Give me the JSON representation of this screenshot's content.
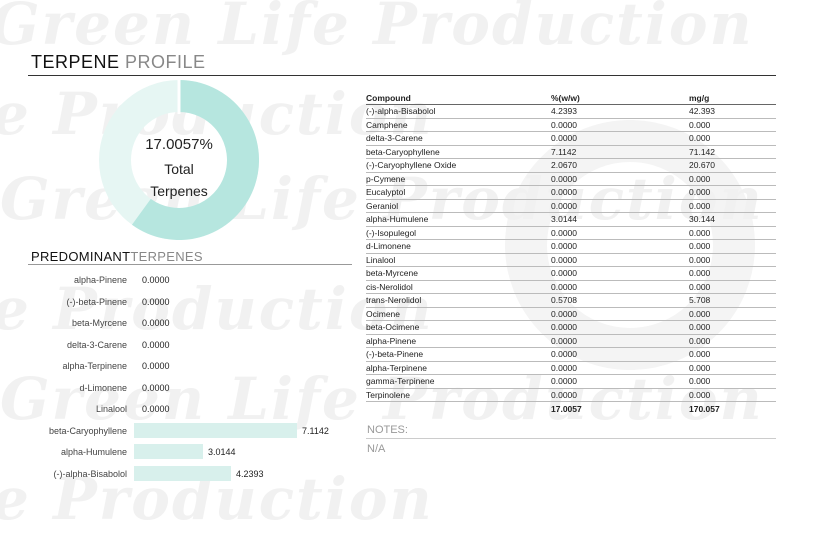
{
  "watermark": {
    "text": "Green Life Production"
  },
  "header": {
    "title_bold": "TERPENE",
    "title_light": "PROFILE"
  },
  "total": {
    "value": "17.0057%",
    "label_line1": "Total",
    "label_line2": "Terpenes",
    "fraction": 0.170057
  },
  "colors": {
    "donut_fill": "#b6e6df",
    "donut_rest": "#e6f6f3",
    "bar": "#d8f0ec"
  },
  "predominant": {
    "title_bold": "PREDOMINANT",
    "title_light": "TERPENES",
    "items": [
      {
        "name": "alpha-Pinene",
        "value": "0.0000",
        "amount": 0.0
      },
      {
        "name": "(-)-beta-Pinene",
        "value": "0.0000",
        "amount": 0.0
      },
      {
        "name": "beta-Myrcene",
        "value": "0.0000",
        "amount": 0.0
      },
      {
        "name": "delta-3-Carene",
        "value": "0.0000",
        "amount": 0.0
      },
      {
        "name": "alpha-Terpinene",
        "value": "0.0000",
        "amount": 0.0
      },
      {
        "name": "d-Limonene",
        "value": "0.0000",
        "amount": 0.0
      },
      {
        "name": "Linalool",
        "value": "0.0000",
        "amount": 0.0
      },
      {
        "name": "beta-Caryophyllene",
        "value": "7.1142",
        "amount": 7.1142
      },
      {
        "name": "alpha-Humulene",
        "value": "3.0144",
        "amount": 3.0144
      },
      {
        "name": "(-)-alpha-Bisabolol",
        "value": "4.2393",
        "amount": 4.2393
      }
    ]
  },
  "table": {
    "headers": [
      "Compound",
      "%(w/w)",
      "mg/g"
    ],
    "rows": [
      [
        "(-)-alpha-Bisabolol",
        "4.2393",
        "42.393"
      ],
      [
        "Camphene",
        "0.0000",
        "0.000"
      ],
      [
        "delta-3-Carene",
        "0.0000",
        "0.000"
      ],
      [
        "beta-Caryophyllene",
        "7.1142",
        "71.142"
      ],
      [
        "(-)-Caryophyllene Oxide",
        "2.0670",
        "20.670"
      ],
      [
        "p-Cymene",
        "0.0000",
        "0.000"
      ],
      [
        "Eucalyptol",
        "0.0000",
        "0.000"
      ],
      [
        "Geraniol",
        "0.0000",
        "0.000"
      ],
      [
        "alpha-Humulene",
        "3.0144",
        "30.144"
      ],
      [
        "(-)-Isopulegol",
        "0.0000",
        "0.000"
      ],
      [
        "d-Limonene",
        "0.0000",
        "0.000"
      ],
      [
        "Linalool",
        "0.0000",
        "0.000"
      ],
      [
        "beta-Myrcene",
        "0.0000",
        "0.000"
      ],
      [
        "cis-Nerolidol",
        "0.0000",
        "0.000"
      ],
      [
        "trans-Nerolidol",
        "0.5708",
        "5.708"
      ],
      [
        "Ocimene",
        "0.0000",
        "0.000"
      ],
      [
        "beta-Ocimene",
        "0.0000",
        "0.000"
      ],
      [
        "alpha-Pinene",
        "0.0000",
        "0.000"
      ],
      [
        "(-)-beta-Pinene",
        "0.0000",
        "0.000"
      ],
      [
        "alpha-Terpinene",
        "0.0000",
        "0.000"
      ],
      [
        "gamma-Terpinene",
        "0.0000",
        "0.000"
      ],
      [
        "Terpinolene",
        "0.0000",
        "0.000"
      ]
    ],
    "total": [
      "",
      "17.0057",
      "170.057"
    ]
  },
  "notes": {
    "label": "NOTES:",
    "value": "N/A"
  }
}
